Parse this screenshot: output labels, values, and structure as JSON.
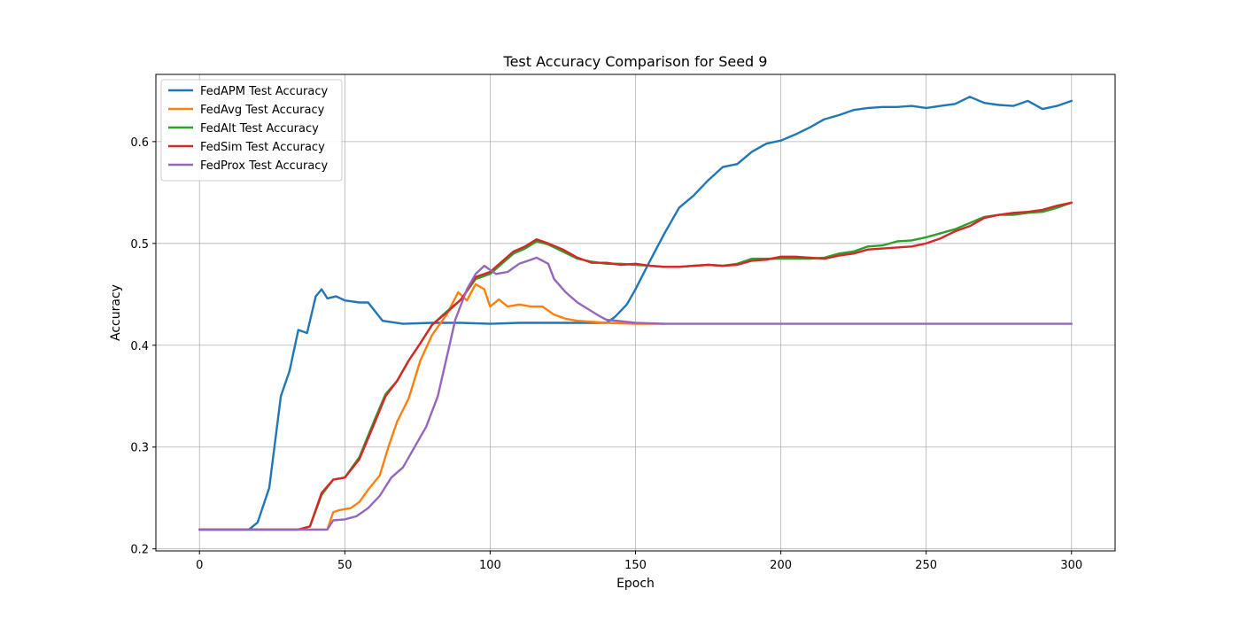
{
  "chart_data": {
    "type": "line",
    "title": "Test Accuracy Comparison for Seed 9",
    "xlabel": "Epoch",
    "ylabel": "Accuracy",
    "xlim": [
      -15,
      315
    ],
    "ylim": [
      0.198,
      0.666
    ],
    "xticks": [
      0,
      50,
      100,
      150,
      200,
      250,
      300
    ],
    "yticks": [
      0.2,
      0.3,
      0.4,
      0.5,
      0.6
    ],
    "ytick_labels": [
      "0.2",
      "0.3",
      "0.4",
      "0.5",
      "0.6"
    ],
    "grid": true,
    "legend_position": "top-left",
    "series": [
      {
        "name": "FedAPM Test Accuracy",
        "color": "#1f77b4",
        "x": [
          0,
          17,
          20,
          24,
          28,
          31,
          34,
          37,
          40,
          42,
          44,
          47,
          50,
          55,
          58,
          63,
          70,
          80,
          90,
          100,
          110,
          120,
          130,
          140,
          143,
          147,
          150,
          155,
          160,
          165,
          170,
          175,
          180,
          185,
          190,
          195,
          200,
          205,
          210,
          215,
          220,
          225,
          230,
          235,
          240,
          245,
          250,
          255,
          260,
          265,
          270,
          275,
          280,
          285,
          290,
          295,
          300
        ],
        "y": [
          0.219,
          0.219,
          0.226,
          0.26,
          0.35,
          0.375,
          0.415,
          0.412,
          0.448,
          0.455,
          0.446,
          0.448,
          0.444,
          0.442,
          0.442,
          0.424,
          0.421,
          0.422,
          0.422,
          0.421,
          0.422,
          0.422,
          0.422,
          0.422,
          0.428,
          0.44,
          0.455,
          0.483,
          0.51,
          0.535,
          0.547,
          0.562,
          0.575,
          0.578,
          0.59,
          0.598,
          0.601,
          0.607,
          0.614,
          0.622,
          0.626,
          0.631,
          0.633,
          0.634,
          0.634,
          0.635,
          0.633,
          0.635,
          0.637,
          0.644,
          0.638,
          0.636,
          0.635,
          0.64,
          0.632,
          0.635,
          0.64
        ]
      },
      {
        "name": "FedAvg Test Accuracy",
        "color": "#ff7f0e",
        "x": [
          0,
          44,
          46,
          48,
          52,
          55,
          58,
          62,
          65,
          68,
          72,
          76,
          80,
          85,
          89,
          92,
          95,
          98,
          100,
          103,
          106,
          110,
          114,
          118,
          122,
          126,
          130,
          140,
          150,
          160
        ],
        "y": [
          0.219,
          0.219,
          0.236,
          0.238,
          0.24,
          0.246,
          0.258,
          0.272,
          0.3,
          0.325,
          0.348,
          0.385,
          0.41,
          0.43,
          0.452,
          0.444,
          0.46,
          0.455,
          0.438,
          0.445,
          0.438,
          0.44,
          0.438,
          0.438,
          0.43,
          0.426,
          0.424,
          0.422,
          0.421,
          0.421
        ]
      },
      {
        "name": "FedAlt Test Accuracy",
        "color": "#2ca02c",
        "x": [
          0,
          34,
          38,
          42,
          46,
          50,
          55,
          60,
          64,
          68,
          72,
          76,
          80,
          85,
          90,
          95,
          100,
          104,
          108,
          112,
          116,
          120,
          125,
          130,
          135,
          140,
          145,
          150,
          155,
          160,
          165,
          170,
          175,
          180,
          185,
          190,
          195,
          200,
          205,
          210,
          215,
          220,
          225,
          230,
          235,
          240,
          245,
          250,
          255,
          260,
          265,
          270,
          275,
          280,
          285,
          290,
          295,
          300
        ],
        "y": [
          0.219,
          0.219,
          0.222,
          0.253,
          0.268,
          0.27,
          0.29,
          0.325,
          0.352,
          0.365,
          0.385,
          0.402,
          0.42,
          0.433,
          0.445,
          0.465,
          0.47,
          0.48,
          0.49,
          0.495,
          0.502,
          0.499,
          0.492,
          0.485,
          0.482,
          0.48,
          0.48,
          0.479,
          0.478,
          0.477,
          0.477,
          0.478,
          0.479,
          0.478,
          0.48,
          0.485,
          0.485,
          0.485,
          0.485,
          0.485,
          0.486,
          0.49,
          0.492,
          0.497,
          0.498,
          0.502,
          0.503,
          0.506,
          0.51,
          0.514,
          0.52,
          0.526,
          0.528,
          0.528,
          0.53,
          0.531,
          0.535,
          0.54
        ]
      },
      {
        "name": "FedSim Test Accuracy",
        "color": "#d62728",
        "x": [
          0,
          34,
          38,
          42,
          46,
          50,
          55,
          60,
          64,
          68,
          72,
          76,
          80,
          85,
          90,
          95,
          100,
          104,
          108,
          112,
          116,
          120,
          125,
          130,
          135,
          140,
          145,
          150,
          155,
          160,
          165,
          170,
          175,
          180,
          185,
          190,
          195,
          200,
          205,
          210,
          215,
          220,
          225,
          230,
          235,
          240,
          245,
          250,
          255,
          260,
          265,
          270,
          275,
          280,
          285,
          290,
          295,
          300
        ],
        "y": [
          0.219,
          0.219,
          0.222,
          0.255,
          0.268,
          0.27,
          0.288,
          0.322,
          0.35,
          0.365,
          0.385,
          0.402,
          0.42,
          0.432,
          0.445,
          0.467,
          0.472,
          0.482,
          0.492,
          0.497,
          0.504,
          0.5,
          0.494,
          0.486,
          0.481,
          0.481,
          0.479,
          0.48,
          0.478,
          0.477,
          0.477,
          0.478,
          0.479,
          0.478,
          0.479,
          0.483,
          0.484,
          0.487,
          0.487,
          0.486,
          0.485,
          0.488,
          0.49,
          0.494,
          0.495,
          0.496,
          0.497,
          0.5,
          0.505,
          0.512,
          0.517,
          0.525,
          0.528,
          0.53,
          0.531,
          0.533,
          0.537,
          0.54
        ]
      },
      {
        "name": "FedProx Test Accuracy",
        "color": "#9467bd",
        "x": [
          0,
          44,
          46,
          50,
          54,
          58,
          62,
          66,
          70,
          74,
          78,
          82,
          86,
          88,
          92,
          95,
          98,
          102,
          106,
          108,
          110,
          114,
          116,
          120,
          122,
          126,
          130,
          134,
          138,
          140,
          150,
          160,
          200,
          250,
          300
        ],
        "y": [
          0.219,
          0.219,
          0.228,
          0.229,
          0.232,
          0.24,
          0.252,
          0.27,
          0.28,
          0.3,
          0.32,
          0.35,
          0.4,
          0.425,
          0.455,
          0.47,
          0.478,
          0.47,
          0.472,
          0.476,
          0.48,
          0.484,
          0.486,
          0.48,
          0.465,
          0.452,
          0.442,
          0.435,
          0.428,
          0.425,
          0.422,
          0.421,
          0.421,
          0.421,
          0.421
        ]
      }
    ]
  }
}
